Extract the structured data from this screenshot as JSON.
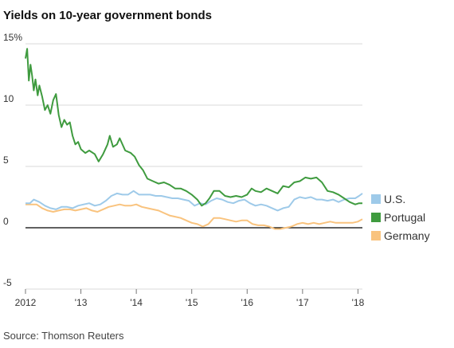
{
  "chart_data": {
    "type": "line",
    "title": "Yields on 10-year government bonds",
    "source": "Source: Thomson Reuters",
    "xlabel": "",
    "ylabel": "",
    "xlim": [
      2012,
      2018.08
    ],
    "ylim": [
      -5,
      15
    ],
    "y_ticks": [
      {
        "value": 15,
        "label": "15%"
      },
      {
        "value": 10,
        "label": "10"
      },
      {
        "value": 5,
        "label": "5"
      },
      {
        "value": 0,
        "label": "0"
      },
      {
        "value": -5,
        "label": "-5"
      }
    ],
    "x_ticks": [
      {
        "value": 2012,
        "label": "2012"
      },
      {
        "value": 2013,
        "label": "'13"
      },
      {
        "value": 2014,
        "label": "'14"
      },
      {
        "value": 2015,
        "label": "'15"
      },
      {
        "value": 2016,
        "label": "'16"
      },
      {
        "value": 2017,
        "label": "'17"
      },
      {
        "value": 2018,
        "label": "'18"
      }
    ],
    "grid": true,
    "legend_position": "right",
    "series": [
      {
        "name": "U.S.",
        "color": "#9ecae9",
        "points": [
          [
            2012.0,
            2.0
          ],
          [
            2012.08,
            2.0
          ],
          [
            2012.15,
            2.3
          ],
          [
            2012.25,
            2.1
          ],
          [
            2012.35,
            1.8
          ],
          [
            2012.45,
            1.6
          ],
          [
            2012.55,
            1.5
          ],
          [
            2012.65,
            1.7
          ],
          [
            2012.75,
            1.7
          ],
          [
            2012.85,
            1.6
          ],
          [
            2012.95,
            1.8
          ],
          [
            2013.05,
            1.9
          ],
          [
            2013.15,
            2.0
          ],
          [
            2013.25,
            1.8
          ],
          [
            2013.35,
            1.9
          ],
          [
            2013.45,
            2.2
          ],
          [
            2013.55,
            2.6
          ],
          [
            2013.65,
            2.8
          ],
          [
            2013.75,
            2.7
          ],
          [
            2013.85,
            2.7
          ],
          [
            2013.95,
            3.0
          ],
          [
            2014.05,
            2.7
          ],
          [
            2014.15,
            2.7
          ],
          [
            2014.25,
            2.7
          ],
          [
            2014.35,
            2.6
          ],
          [
            2014.45,
            2.6
          ],
          [
            2014.55,
            2.5
          ],
          [
            2014.65,
            2.4
          ],
          [
            2014.75,
            2.4
          ],
          [
            2014.85,
            2.3
          ],
          [
            2014.95,
            2.2
          ],
          [
            2015.05,
            1.8
          ],
          [
            2015.15,
            2.0
          ],
          [
            2015.25,
            1.9
          ],
          [
            2015.35,
            2.2
          ],
          [
            2015.45,
            2.4
          ],
          [
            2015.55,
            2.3
          ],
          [
            2015.65,
            2.1
          ],
          [
            2015.75,
            2.0
          ],
          [
            2015.85,
            2.2
          ],
          [
            2015.95,
            2.3
          ],
          [
            2016.05,
            2.0
          ],
          [
            2016.15,
            1.8
          ],
          [
            2016.25,
            1.9
          ],
          [
            2016.35,
            1.8
          ],
          [
            2016.45,
            1.6
          ],
          [
            2016.55,
            1.4
          ],
          [
            2016.65,
            1.6
          ],
          [
            2016.75,
            1.7
          ],
          [
            2016.85,
            2.3
          ],
          [
            2016.95,
            2.5
          ],
          [
            2017.05,
            2.4
          ],
          [
            2017.15,
            2.5
          ],
          [
            2017.25,
            2.3
          ],
          [
            2017.35,
            2.3
          ],
          [
            2017.45,
            2.2
          ],
          [
            2017.55,
            2.3
          ],
          [
            2017.65,
            2.1
          ],
          [
            2017.75,
            2.3
          ],
          [
            2017.85,
            2.4
          ],
          [
            2017.95,
            2.4
          ],
          [
            2018.02,
            2.6
          ],
          [
            2018.08,
            2.8
          ]
        ]
      },
      {
        "name": "Portugal",
        "color": "#3f9b3f",
        "points": [
          [
            2012.0,
            13.8
          ],
          [
            2012.03,
            14.6
          ],
          [
            2012.06,
            12.0
          ],
          [
            2012.09,
            13.3
          ],
          [
            2012.12,
            12.4
          ],
          [
            2012.15,
            11.2
          ],
          [
            2012.18,
            12.1
          ],
          [
            2012.22,
            10.8
          ],
          [
            2012.25,
            11.6
          ],
          [
            2012.3,
            10.7
          ],
          [
            2012.35,
            9.6
          ],
          [
            2012.4,
            10.0
          ],
          [
            2012.45,
            9.3
          ],
          [
            2012.5,
            10.4
          ],
          [
            2012.55,
            10.9
          ],
          [
            2012.6,
            9.2
          ],
          [
            2012.65,
            8.2
          ],
          [
            2012.7,
            8.8
          ],
          [
            2012.75,
            8.4
          ],
          [
            2012.8,
            8.6
          ],
          [
            2012.85,
            7.5
          ],
          [
            2012.9,
            6.8
          ],
          [
            2012.95,
            7.0
          ],
          [
            2013.0,
            6.4
          ],
          [
            2013.08,
            6.1
          ],
          [
            2013.15,
            6.3
          ],
          [
            2013.25,
            6.0
          ],
          [
            2013.32,
            5.4
          ],
          [
            2013.4,
            6.0
          ],
          [
            2013.48,
            6.8
          ],
          [
            2013.52,
            7.5
          ],
          [
            2013.58,
            6.6
          ],
          [
            2013.65,
            6.8
          ],
          [
            2013.7,
            7.3
          ],
          [
            2013.8,
            6.3
          ],
          [
            2013.9,
            6.1
          ],
          [
            2013.97,
            5.8
          ],
          [
            2014.05,
            5.1
          ],
          [
            2014.12,
            4.7
          ],
          [
            2014.2,
            4.0
          ],
          [
            2014.3,
            3.8
          ],
          [
            2014.4,
            3.6
          ],
          [
            2014.5,
            3.7
          ],
          [
            2014.6,
            3.5
          ],
          [
            2014.7,
            3.2
          ],
          [
            2014.8,
            3.2
          ],
          [
            2014.9,
            3.0
          ],
          [
            2015.0,
            2.7
          ],
          [
            2015.1,
            2.3
          ],
          [
            2015.18,
            1.8
          ],
          [
            2015.25,
            2.0
          ],
          [
            2015.32,
            2.4
          ],
          [
            2015.4,
            3.0
          ],
          [
            2015.5,
            3.0
          ],
          [
            2015.6,
            2.6
          ],
          [
            2015.7,
            2.5
          ],
          [
            2015.8,
            2.6
          ],
          [
            2015.9,
            2.5
          ],
          [
            2016.0,
            2.7
          ],
          [
            2016.08,
            3.2
          ],
          [
            2016.15,
            3.0
          ],
          [
            2016.25,
            2.9
          ],
          [
            2016.35,
            3.2
          ],
          [
            2016.45,
            3.0
          ],
          [
            2016.55,
            2.8
          ],
          [
            2016.65,
            3.4
          ],
          [
            2016.75,
            3.3
          ],
          [
            2016.85,
            3.7
          ],
          [
            2016.95,
            3.8
          ],
          [
            2017.05,
            4.1
          ],
          [
            2017.15,
            4.0
          ],
          [
            2017.25,
            4.1
          ],
          [
            2017.35,
            3.7
          ],
          [
            2017.45,
            3.0
          ],
          [
            2017.55,
            2.9
          ],
          [
            2017.65,
            2.7
          ],
          [
            2017.75,
            2.4
          ],
          [
            2017.85,
            2.1
          ],
          [
            2017.95,
            1.9
          ],
          [
            2018.02,
            2.0
          ],
          [
            2018.08,
            2.0
          ]
        ]
      },
      {
        "name": "Germany",
        "color": "#f9c37e",
        "points": [
          [
            2012.0,
            1.9
          ],
          [
            2012.1,
            1.9
          ],
          [
            2012.2,
            1.9
          ],
          [
            2012.3,
            1.6
          ],
          [
            2012.4,
            1.4
          ],
          [
            2012.5,
            1.3
          ],
          [
            2012.6,
            1.4
          ],
          [
            2012.7,
            1.5
          ],
          [
            2012.8,
            1.5
          ],
          [
            2012.9,
            1.4
          ],
          [
            2013.0,
            1.5
          ],
          [
            2013.1,
            1.6
          ],
          [
            2013.2,
            1.4
          ],
          [
            2013.3,
            1.3
          ],
          [
            2013.4,
            1.5
          ],
          [
            2013.5,
            1.7
          ],
          [
            2013.6,
            1.8
          ],
          [
            2013.7,
            1.9
          ],
          [
            2013.8,
            1.8
          ],
          [
            2013.9,
            1.8
          ],
          [
            2014.0,
            1.9
          ],
          [
            2014.1,
            1.7
          ],
          [
            2014.2,
            1.6
          ],
          [
            2014.3,
            1.5
          ],
          [
            2014.4,
            1.4
          ],
          [
            2014.5,
            1.2
          ],
          [
            2014.6,
            1.0
          ],
          [
            2014.7,
            0.9
          ],
          [
            2014.8,
            0.8
          ],
          [
            2014.9,
            0.6
          ],
          [
            2015.0,
            0.4
          ],
          [
            2015.1,
            0.3
          ],
          [
            2015.2,
            0.1
          ],
          [
            2015.3,
            0.3
          ],
          [
            2015.4,
            0.8
          ],
          [
            2015.5,
            0.8
          ],
          [
            2015.6,
            0.7
          ],
          [
            2015.7,
            0.6
          ],
          [
            2015.8,
            0.5
          ],
          [
            2015.9,
            0.6
          ],
          [
            2016.0,
            0.6
          ],
          [
            2016.1,
            0.3
          ],
          [
            2016.2,
            0.2
          ],
          [
            2016.3,
            0.2
          ],
          [
            2016.4,
            0.1
          ],
          [
            2016.5,
            -0.1
          ],
          [
            2016.6,
            -0.1
          ],
          [
            2016.7,
            0.0
          ],
          [
            2016.8,
            0.1
          ],
          [
            2016.9,
            0.3
          ],
          [
            2017.0,
            0.4
          ],
          [
            2017.1,
            0.3
          ],
          [
            2017.2,
            0.4
          ],
          [
            2017.3,
            0.3
          ],
          [
            2017.4,
            0.4
          ],
          [
            2017.5,
            0.5
          ],
          [
            2017.6,
            0.4
          ],
          [
            2017.7,
            0.4
          ],
          [
            2017.8,
            0.4
          ],
          [
            2017.9,
            0.4
          ],
          [
            2018.0,
            0.5
          ],
          [
            2018.08,
            0.7
          ]
        ]
      }
    ]
  }
}
